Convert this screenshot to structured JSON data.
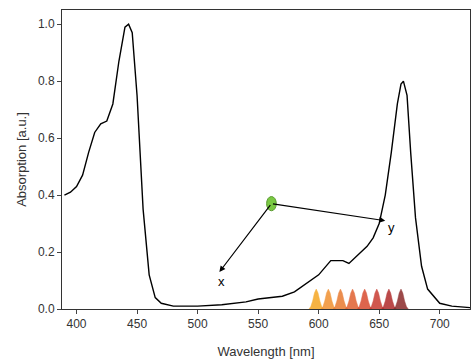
{
  "chart_data": {
    "type": "line",
    "x_label": "Wavelength [nm]",
    "y_label": "Absorption [a.u.]",
    "x": [
      390,
      395,
      400,
      405,
      410,
      415,
      420,
      425,
      430,
      435,
      440,
      443,
      446,
      450,
      455,
      460,
      465,
      470,
      480,
      500,
      520,
      540,
      550,
      560,
      570,
      580,
      590,
      600,
      610,
      620,
      625,
      630,
      640,
      645,
      650,
      655,
      660,
      665,
      668,
      670,
      673,
      676,
      680,
      685,
      690,
      700,
      710,
      725
    ],
    "values": [
      0.4,
      0.41,
      0.43,
      0.47,
      0.55,
      0.62,
      0.65,
      0.66,
      0.72,
      0.87,
      0.99,
      1.0,
      0.97,
      0.75,
      0.35,
      0.12,
      0.04,
      0.02,
      0.01,
      0.01,
      0.015,
      0.025,
      0.035,
      0.04,
      0.045,
      0.06,
      0.09,
      0.12,
      0.17,
      0.17,
      0.16,
      0.18,
      0.22,
      0.25,
      0.3,
      0.4,
      0.55,
      0.72,
      0.79,
      0.8,
      0.75,
      0.55,
      0.32,
      0.15,
      0.07,
      0.02,
      0.01,
      0.005
    ],
    "color": "#000000",
    "xlim": [
      388,
      725
    ],
    "ylim": [
      0,
      1.05
    ],
    "xticks": [
      400,
      450,
      500,
      550,
      600,
      650,
      700
    ],
    "yticks": [
      {
        "value": 0,
        "label": "0.0"
      },
      {
        "value": 0.2,
        "label": "0.2"
      },
      {
        "value": 0.4,
        "label": "0.4"
      },
      {
        "value": 0.6,
        "label": "0.6"
      },
      {
        "value": 0.8,
        "label": "0.8"
      },
      {
        "value": 1.0,
        "label": "1.0"
      }
    ],
    "grid": false,
    "pulses": {
      "centers": [
        598,
        608,
        618,
        628,
        638,
        648,
        658,
        668
      ],
      "height": 0.07,
      "colors": [
        "#f5a623",
        "#f09030",
        "#e87a30",
        "#e06030",
        "#d84b2f",
        "#c83a30",
        "#b02a2a",
        "#8b2a2a"
      ]
    },
    "annotations": [
      {
        "text": "x"
      },
      {
        "text": "y"
      }
    ]
  }
}
